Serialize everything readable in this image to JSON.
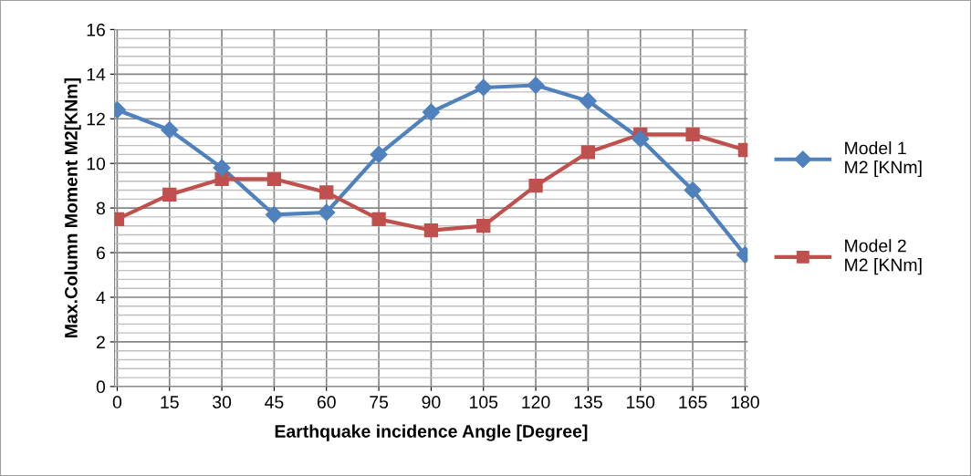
{
  "chart_data": {
    "type": "line",
    "xlabel": "Earthquake incidence Angle [Degree]",
    "ylabel": "Max.Column Moment M2[KNm]",
    "categories": [
      "0",
      "15",
      "30",
      "45",
      "60",
      "75",
      "90",
      "105",
      "120",
      "135",
      "150",
      "165",
      "180"
    ],
    "series": [
      {
        "name": "Model 1\nM2 [KNm]",
        "color": "#4f81bd",
        "marker": "diamond",
        "values": [
          12.4,
          11.5,
          9.8,
          7.7,
          7.8,
          10.4,
          12.3,
          13.4,
          13.5,
          12.8,
          11.1,
          8.8,
          5.9
        ]
      },
      {
        "name": "Model 2\nM2 [KNm]",
        "color": "#c0504d",
        "marker": "square",
        "values": [
          7.5,
          8.6,
          9.3,
          9.3,
          8.7,
          7.5,
          7.0,
          7.2,
          9.0,
          10.5,
          11.3,
          11.3,
          10.6
        ]
      }
    ],
    "ylim": [
      0,
      16
    ],
    "yticks": [
      0,
      2,
      4,
      6,
      8,
      10,
      12,
      14,
      16
    ],
    "grid": true,
    "legend": "right",
    "line_style": "solid"
  }
}
